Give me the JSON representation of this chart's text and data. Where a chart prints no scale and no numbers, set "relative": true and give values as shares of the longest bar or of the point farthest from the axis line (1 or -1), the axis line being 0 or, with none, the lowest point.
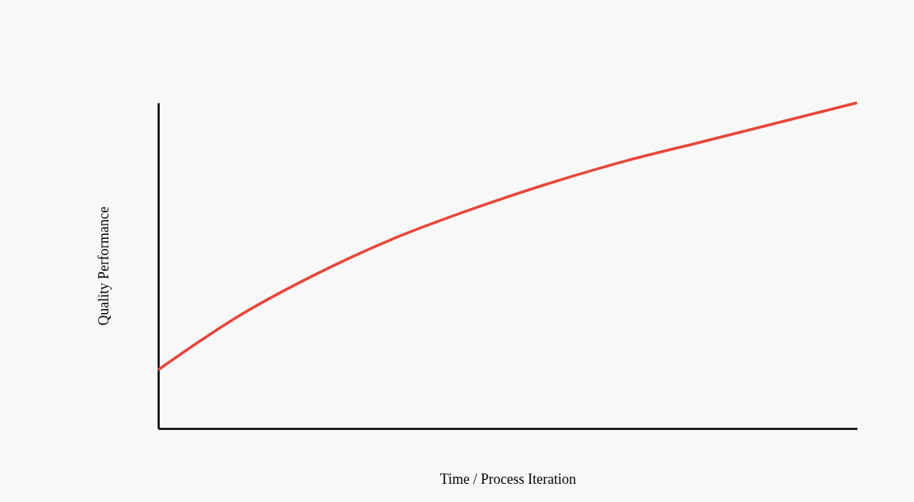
{
  "chart_data": {
    "type": "line",
    "relative": true,
    "xlabel": "Time / Process Iteration",
    "ylabel": "Quality Performance",
    "categories": [
      null,
      null,
      null,
      null,
      null,
      null,
      null,
      null,
      null,
      null
    ],
    "series": [
      {
        "color": "#e8473a",
        "values": [
          0.18,
          0.34,
          0.47,
          0.58,
          0.67,
          0.75,
          0.82,
          0.88,
          0.94,
          1.0
        ]
      }
    ],
    "grid": false,
    "marker": "none",
    "line_style": "solid"
  }
}
